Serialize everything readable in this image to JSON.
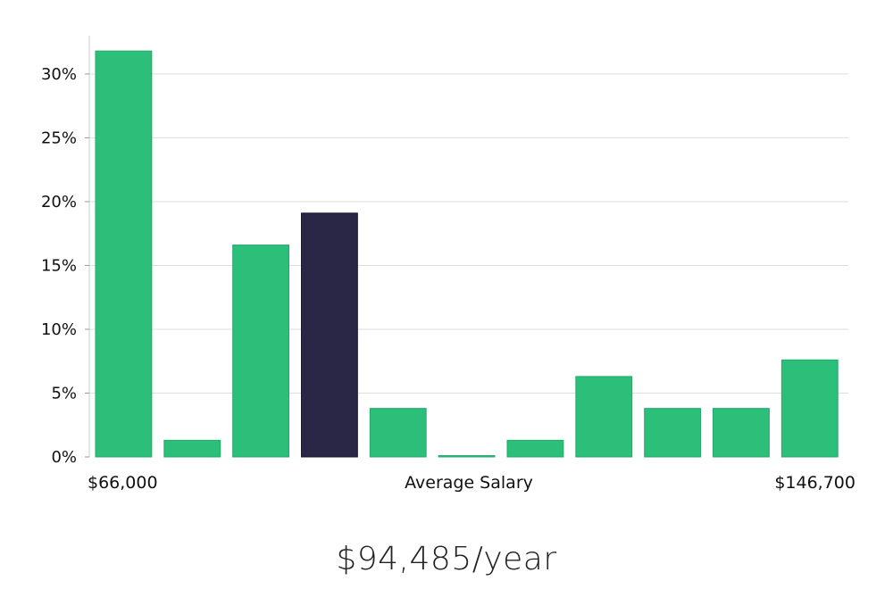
{
  "chart_data": {
    "type": "bar",
    "values": [
      31.8,
      1.3,
      16.6,
      19.1,
      3.8,
      0.1,
      1.3,
      6.3,
      3.8,
      3.8,
      7.6
    ],
    "highlight_index": 3,
    "ylim": [
      0,
      33
    ],
    "yticks": [
      0,
      5,
      10,
      15,
      20,
      25,
      30
    ],
    "ytick_labels": [
      "0%",
      "5%",
      "10%",
      "15%",
      "20%",
      "25%",
      "30%"
    ],
    "x_min_label": "$66,000",
    "xlabel": "Average Salary",
    "x_max_label": "$146,700",
    "grid": true,
    "colors": {
      "bar": "#2bbf79",
      "highlight": "#2a2646",
      "grid": "#dddddd",
      "axis": "#cccccc"
    }
  },
  "summary": {
    "salary": "$94,485/year"
  }
}
